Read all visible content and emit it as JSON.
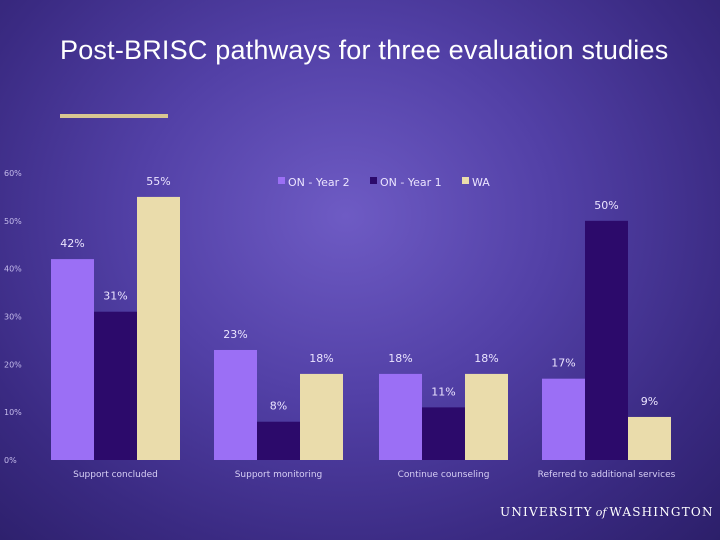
{
  "slide": {
    "title": "Post-BRISC pathways for three evaluation studies",
    "footer": {
      "pre": "UNIVERSITY",
      "mid": "of",
      "post": "WASHINGTON"
    }
  },
  "colors": {
    "series": [
      "#9b6ff5",
      "#2c0a6b",
      "#eadcab"
    ],
    "rule": "#d8c691"
  },
  "chart_data": {
    "type": "bar",
    "title": "",
    "xlabel": "",
    "ylabel": "",
    "ylim": [
      0,
      60
    ],
    "yticks": [
      0,
      10,
      20,
      30,
      40,
      50,
      60
    ],
    "ytick_labels": [
      "0%",
      "10%",
      "20%",
      "30%",
      "40%",
      "50%",
      "60%"
    ],
    "grid": false,
    "legend_position": "top-center",
    "categories": [
      "Support concluded",
      "Support monitoring",
      "Continue counseling",
      "Referred to additional services"
    ],
    "series": [
      {
        "name": "ON - Year 2",
        "values": [
          42,
          23,
          18,
          17
        ],
        "labels": [
          "42%",
          "23%",
          "18%",
          "17%"
        ]
      },
      {
        "name": "ON - Year 1",
        "values": [
          31,
          8,
          11,
          50
        ],
        "labels": [
          "31%",
          "8%",
          "11%",
          "50%"
        ]
      },
      {
        "name": "WA",
        "values": [
          55,
          18,
          18,
          9
        ],
        "labels": [
          "55%",
          "18%",
          "18%",
          "9%"
        ]
      }
    ]
  }
}
